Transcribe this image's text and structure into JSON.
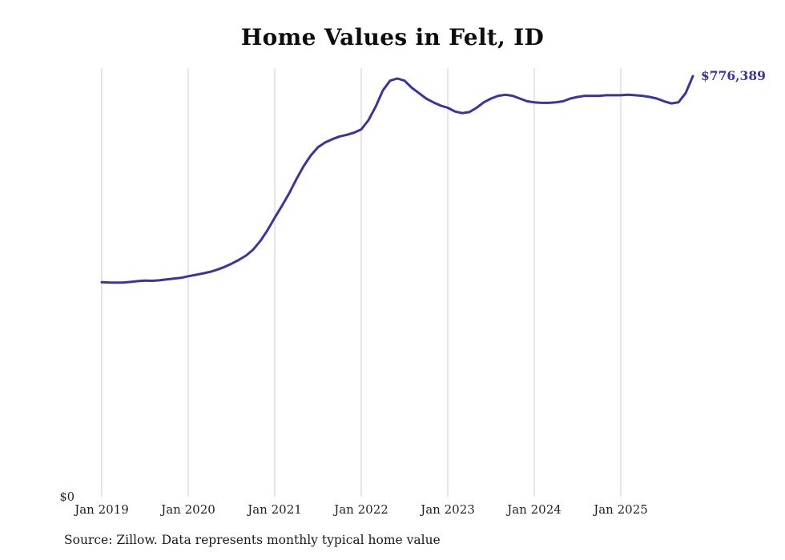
{
  "chart_data": {
    "type": "line",
    "title": "Home Values in Felt, ID",
    "series_name": "Monthly typical home value",
    "x_start": "2019-01",
    "x_ticks": [
      "Jan 2019",
      "Jan 2020",
      "Jan 2021",
      "Jan 2022",
      "Jan 2023",
      "Jan 2024",
      "Jan 2025"
    ],
    "tick_month_indices": [
      0,
      12,
      24,
      36,
      48,
      60,
      72
    ],
    "y_zero_label": "$0",
    "end_label": "$776,389",
    "final_value": 776389,
    "ylim": [
      0,
      800000
    ],
    "grid": "vertical-only",
    "legend": "none",
    "values": [
      396000,
      395500,
      395200,
      395500,
      396500,
      398000,
      399000,
      398500,
      399500,
      401000,
      402500,
      404000,
      407000,
      409500,
      412000,
      415000,
      419000,
      424000,
      430000,
      437000,
      445000,
      456000,
      472000,
      492000,
      515000,
      537000,
      560000,
      586000,
      610000,
      630000,
      645000,
      654000,
      660000,
      665000,
      668000,
      672000,
      678000,
      695000,
      720000,
      750000,
      768000,
      772000,
      768000,
      755000,
      745000,
      735000,
      728000,
      722000,
      718000,
      711000,
      708000,
      710000,
      718000,
      728000,
      735000,
      740000,
      742000,
      740000,
      735000,
      730000,
      728000,
      727000,
      727000,
      728000,
      730000,
      735000,
      738000,
      740000,
      740000,
      740000,
      741000,
      741000,
      741000,
      742000,
      741000,
      740000,
      738000,
      735000,
      730000,
      726000,
      728000,
      745000,
      776389
    ],
    "line_color": "#3a34a1",
    "label_color": "#3a34a1",
    "grid_color": "#cccccc",
    "source_note": "Source: Zillow. Data represents monthly typical home value"
  }
}
